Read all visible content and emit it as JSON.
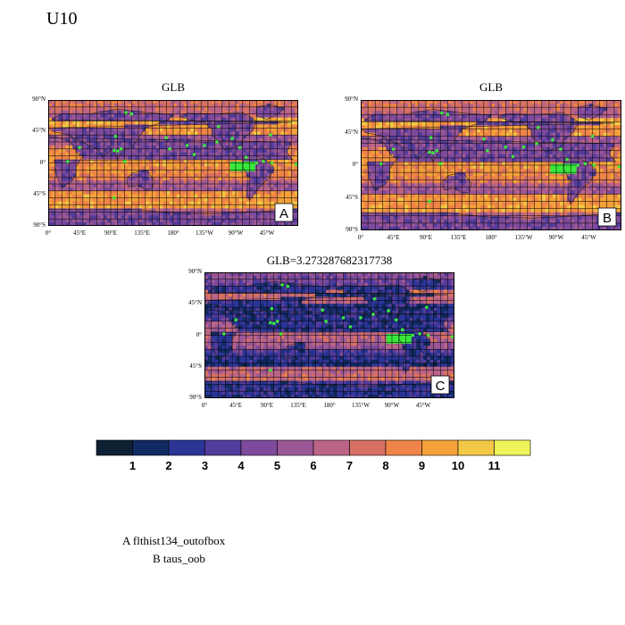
{
  "main_title": "U10",
  "panels": [
    {
      "id": "A",
      "title": "GLB",
      "label": "A",
      "lat_ticks": [
        "90°N",
        "45°N",
        "0°",
        "45°S",
        "90°S"
      ],
      "lon_ticks": [
        "0°",
        "45°E",
        "90°E",
        "135°E",
        "180°",
        "135°W",
        "90°W",
        "45°W"
      ]
    },
    {
      "id": "B",
      "title": "GLB",
      "label": "B",
      "lat_ticks": [
        "90°N",
        "45°N",
        "0°",
        "45°S",
        "90°S"
      ],
      "lon_ticks": [
        "0°",
        "45°E",
        "90°E",
        "135°E",
        "180°",
        "135°W",
        "90°W",
        "45°W"
      ]
    },
    {
      "id": "C",
      "title": "GLB=3.273287682317738",
      "label": "C",
      "lat_ticks": [
        "90°N",
        "45°N",
        "0°",
        "45°S",
        "90°S"
      ],
      "lon_ticks": [
        "0°",
        "45°E",
        "90°E",
        "135°E",
        "180°",
        "135°W",
        "90°W",
        "45°W"
      ]
    }
  ],
  "colorbar": {
    "colors": [
      "#0d1f33",
      "#112a61",
      "#2b3596",
      "#523c9c",
      "#7d4a9c",
      "#9a5796",
      "#bb6488",
      "#d77065",
      "#ee8447",
      "#f4a13a",
      "#f2c846",
      "#eef45a"
    ],
    "labels": [
      "1",
      "2",
      "3",
      "4",
      "5",
      "6",
      "7",
      "8",
      "9",
      "10",
      "11"
    ]
  },
  "legend": {
    "line_a": "A  flthist134_outofbox",
    "line_b": "B  taus_oob"
  }
}
